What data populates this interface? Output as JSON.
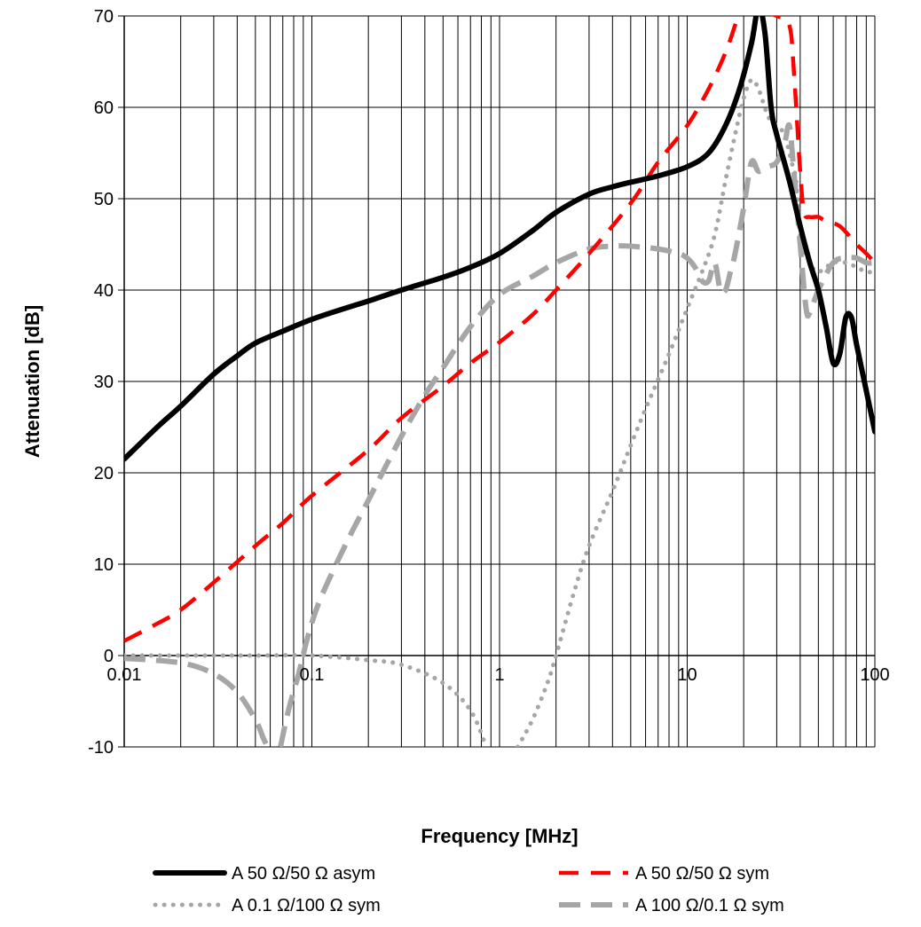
{
  "chart_data": {
    "type": "line",
    "xlabel": "Frequency [MHz]",
    "ylabel": "Attenuation [dB]",
    "x_scale": "log",
    "xlim": [
      0.01,
      100
    ],
    "ylim": [
      -10,
      70
    ],
    "x_ticks": [
      "0.01",
      "0.1",
      "1",
      "10",
      "100"
    ],
    "y_ticks": [
      "-10",
      "0",
      "10",
      "20",
      "30",
      "40",
      "50",
      "60",
      "70"
    ],
    "grid": true,
    "legend_position": "bottom",
    "series": [
      {
        "name": "A 50 Ω/50 Ω asym",
        "color": "#000000",
        "style": "solid",
        "points": [
          [
            0.01,
            21.5
          ],
          [
            0.015,
            25
          ],
          [
            0.02,
            27.3
          ],
          [
            0.03,
            30.8
          ],
          [
            0.04,
            32.8
          ],
          [
            0.05,
            34.2
          ],
          [
            0.07,
            35.5
          ],
          [
            0.1,
            36.8
          ],
          [
            0.15,
            38
          ],
          [
            0.2,
            38.8
          ],
          [
            0.3,
            40
          ],
          [
            0.5,
            41.4
          ],
          [
            0.7,
            42.5
          ],
          [
            1,
            44
          ],
          [
            1.5,
            46.5
          ],
          [
            2,
            48.5
          ],
          [
            3,
            50.5
          ],
          [
            4,
            51.3
          ],
          [
            5,
            51.8
          ],
          [
            7,
            52.5
          ],
          [
            10,
            53.5
          ],
          [
            13,
            55
          ],
          [
            16,
            58
          ],
          [
            19,
            62
          ],
          [
            22,
            67
          ],
          [
            24,
            71
          ],
          [
            26,
            68
          ],
          [
            28,
            60
          ],
          [
            30,
            57
          ],
          [
            35,
            52
          ],
          [
            40,
            47
          ],
          [
            45,
            43
          ],
          [
            50,
            40
          ],
          [
            55,
            36
          ],
          [
            60,
            32
          ],
          [
            65,
            33
          ],
          [
            70,
            37
          ],
          [
            75,
            37
          ],
          [
            80,
            34
          ],
          [
            90,
            29
          ],
          [
            100,
            24.5
          ]
        ]
      },
      {
        "name": "A 50 Ω/50 Ω sym",
        "color": "#ff0000",
        "style": "dashed",
        "points": [
          [
            0.01,
            1.6
          ],
          [
            0.015,
            3.5
          ],
          [
            0.02,
            5
          ],
          [
            0.03,
            8
          ],
          [
            0.05,
            12
          ],
          [
            0.07,
            14.5
          ],
          [
            0.1,
            17.5
          ],
          [
            0.2,
            22.5
          ],
          [
            0.3,
            26
          ],
          [
            0.5,
            29.5
          ],
          [
            0.7,
            32
          ],
          [
            1,
            34.3
          ],
          [
            1.5,
            37.3
          ],
          [
            2,
            40
          ],
          [
            3,
            44
          ],
          [
            5,
            49.5
          ],
          [
            7,
            54
          ],
          [
            10,
            58
          ],
          [
            13,
            62
          ],
          [
            16,
            66
          ],
          [
            18,
            69
          ],
          [
            19,
            70.5
          ]
        ]
      },
      {
        "name": "A 50 Ω/50 Ω sym",
        "color": "#ff0000",
        "style": "dashed",
        "points": [
          [
            25,
            70.5
          ],
          [
            30,
            70
          ],
          [
            35,
            69
          ],
          [
            37,
            64
          ],
          [
            40,
            53
          ],
          [
            42,
            48.5
          ],
          [
            45,
            48
          ],
          [
            50,
            48
          ],
          [
            55,
            47.5
          ],
          [
            65,
            47
          ],
          [
            80,
            45
          ],
          [
            90,
            44
          ],
          [
            100,
            43
          ]
        ]
      },
      {
        "name": "A 0.1 Ω/100 Ω sym",
        "color": "#a6a6a6",
        "style": "dotted",
        "points": [
          [
            0.01,
            0
          ],
          [
            0.03,
            0
          ],
          [
            0.05,
            0
          ],
          [
            0.1,
            0
          ],
          [
            0.2,
            -0.5
          ],
          [
            0.3,
            -1
          ],
          [
            0.5,
            -3
          ],
          [
            0.7,
            -6
          ],
          [
            0.85,
            -10
          ]
        ]
      },
      {
        "name": "A 0.1 Ω/100 Ω sym",
        "color": "#a6a6a6",
        "style": "dotted",
        "points": [
          [
            1.25,
            -10
          ],
          [
            1.5,
            -7
          ],
          [
            1.8,
            -3
          ],
          [
            2,
            0
          ],
          [
            2.5,
            7
          ],
          [
            3,
            12
          ],
          [
            4,
            18
          ],
          [
            5,
            23
          ],
          [
            6,
            27
          ],
          [
            8,
            33
          ],
          [
            10,
            38
          ],
          [
            12,
            42
          ],
          [
            14,
            46
          ],
          [
            16,
            52
          ],
          [
            18,
            57
          ],
          [
            20,
            61
          ],
          [
            22,
            63
          ],
          [
            24,
            62
          ],
          [
            27,
            59
          ],
          [
            30,
            58
          ],
          [
            33,
            57
          ],
          [
            36,
            54
          ],
          [
            38,
            52
          ],
          [
            40,
            46
          ],
          [
            45,
            43
          ],
          [
            50,
            42
          ],
          [
            60,
            43
          ],
          [
            70,
            43
          ],
          [
            80,
            42.5
          ],
          [
            90,
            42
          ],
          [
            100,
            42
          ]
        ]
      },
      {
        "name": "A 100 Ω/0.1 Ω sym",
        "color": "#a6a6a6",
        "style": "dashed",
        "points": [
          [
            0.01,
            -0.3
          ],
          [
            0.02,
            -0.8
          ],
          [
            0.03,
            -2
          ],
          [
            0.04,
            -4
          ],
          [
            0.05,
            -7
          ],
          [
            0.055,
            -9
          ],
          [
            0.058,
            -10
          ]
        ]
      },
      {
        "name": "A 100 Ω/0.1 Ω sym",
        "color": "#a6a6a6",
        "style": "dashed",
        "points": [
          [
            0.068,
            -10
          ],
          [
            0.075,
            -6
          ],
          [
            0.085,
            -2
          ],
          [
            0.095,
            2
          ],
          [
            0.11,
            6
          ],
          [
            0.15,
            12
          ],
          [
            0.2,
            17
          ],
          [
            0.3,
            24
          ],
          [
            0.4,
            28.5
          ],
          [
            0.5,
            31.5
          ],
          [
            0.7,
            36
          ],
          [
            1,
            39.5
          ],
          [
            1.5,
            41.5
          ],
          [
            2,
            43
          ],
          [
            3,
            44.5
          ],
          [
            4,
            44.8
          ],
          [
            5,
            44.8
          ],
          [
            7,
            44.5
          ],
          [
            9,
            44
          ],
          [
            10,
            43.5
          ],
          [
            11,
            42.5
          ],
          [
            12,
            41
          ],
          [
            13,
            41
          ],
          [
            14,
            43
          ],
          [
            15,
            40
          ],
          [
            16,
            40
          ],
          [
            17,
            42
          ],
          [
            18,
            44
          ],
          [
            20,
            49
          ],
          [
            22,
            54
          ],
          [
            24,
            53
          ],
          [
            27,
            53.5
          ],
          [
            30,
            54
          ],
          [
            33,
            56
          ],
          [
            35,
            58
          ],
          [
            37,
            53
          ],
          [
            40,
            45
          ],
          [
            43,
            38
          ],
          [
            45,
            37.5
          ],
          [
            50,
            40
          ],
          [
            60,
            43
          ],
          [
            70,
            43.5
          ],
          [
            80,
            43.5
          ],
          [
            90,
            43
          ],
          [
            100,
            43
          ]
        ]
      }
    ]
  },
  "legend": [
    {
      "label": "A 50 Ω/50 Ω asym",
      "color": "#000000",
      "style": "solid"
    },
    {
      "label": "A 50 Ω/50 Ω sym",
      "color": "#ff0000",
      "style": "dashed"
    },
    {
      "label": "A 0.1 Ω/100 Ω sym",
      "color": "#a6a6a6",
      "style": "dotted"
    },
    {
      "label": "A 100 Ω/0.1 Ω sym",
      "color": "#a6a6a6",
      "style": "dashed"
    }
  ]
}
